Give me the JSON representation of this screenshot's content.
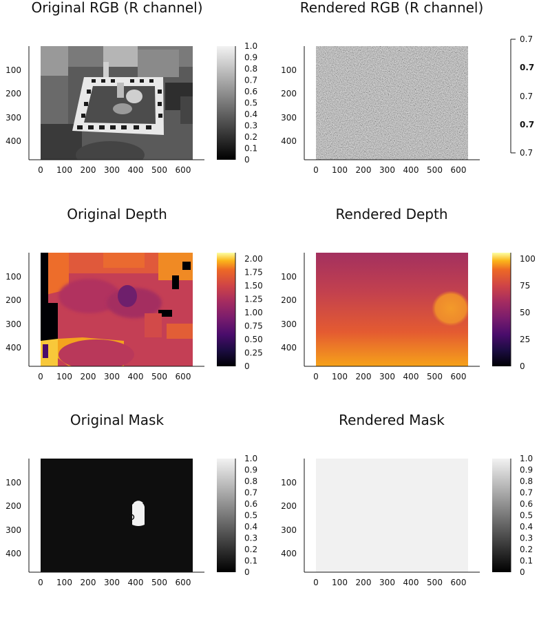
{
  "chart_data": [
    {
      "type": "heatmap",
      "title": "Original RGB (R channel)",
      "colormap": "grays",
      "xticks": [
        0,
        100,
        200,
        300,
        400,
        500,
        600
      ],
      "yticks": [
        100,
        200,
        300,
        400
      ],
      "xlim": [
        0,
        640
      ],
      "ylim": [
        480,
        0
      ],
      "colorbar": {
        "min": 0,
        "max": 1.0,
        "ticks": [
          "0",
          "0.1",
          "0.2",
          "0.3",
          "0.4",
          "0.5",
          "0.6",
          "0.7",
          "0.8",
          "0.9",
          "1.0"
        ]
      },
      "content": "photo"
    },
    {
      "type": "heatmap",
      "title": "Rendered RGB (R channel)",
      "colormap": "grays",
      "xticks": [
        0,
        100,
        200,
        300,
        400,
        500,
        600
      ],
      "yticks": [
        100,
        200,
        300,
        400
      ],
      "xlim": [
        0,
        640
      ],
      "ylim": [
        480,
        0
      ],
      "colorbar": {
        "ticks": [
          "0.7",
          "0.7",
          "0.7",
          "0.7",
          "0.7"
        ],
        "bold": [
          false,
          true,
          false,
          true,
          false
        ]
      },
      "content": "noise"
    },
    {
      "type": "heatmap",
      "title": "Original Depth",
      "colormap": "inferno",
      "xticks": [
        0,
        100,
        200,
        300,
        400,
        500,
        600
      ],
      "yticks": [
        100,
        200,
        300,
        400
      ],
      "xlim": [
        0,
        640
      ],
      "ylim": [
        480,
        0
      ],
      "colorbar": {
        "min": 0,
        "max": 2.1,
        "ticks": [
          "0",
          "0.25",
          "0.50",
          "0.75",
          "1.00",
          "1.25",
          "1.50",
          "1.75",
          "2.00"
        ]
      },
      "content": "depth"
    },
    {
      "type": "heatmap",
      "title": "Rendered Depth",
      "colormap": "inferno",
      "xticks": [
        0,
        100,
        200,
        300,
        400,
        500,
        600
      ],
      "yticks": [
        100,
        200,
        300,
        400
      ],
      "xlim": [
        0,
        640
      ],
      "ylim": [
        480,
        0
      ],
      "colorbar": {
        "min": 0,
        "max": 108,
        "ticks": [
          "0",
          "25",
          "50",
          "75",
          "100"
        ]
      },
      "content": "gradient"
    },
    {
      "type": "heatmap",
      "title": "Original Mask",
      "colormap": "grays",
      "xticks": [
        0,
        100,
        200,
        300,
        400,
        500,
        600
      ],
      "yticks": [
        100,
        200,
        300,
        400
      ],
      "xlim": [
        0,
        640
      ],
      "ylim": [
        480,
        0
      ],
      "colorbar": {
        "min": 0,
        "max": 1.0,
        "ticks": [
          "0",
          "0.1",
          "0.2",
          "0.3",
          "0.4",
          "0.5",
          "0.6",
          "0.7",
          "0.8",
          "0.9",
          "1.0"
        ]
      },
      "content": "mask"
    },
    {
      "type": "heatmap",
      "title": "Rendered Mask",
      "colormap": "grays",
      "xticks": [
        0,
        100,
        200,
        300,
        400,
        500,
        600
      ],
      "yticks": [
        100,
        200,
        300,
        400
      ],
      "xlim": [
        0,
        640
      ],
      "ylim": [
        480,
        0
      ],
      "colorbar": {
        "min": 0,
        "max": 1.0,
        "ticks": [
          "0",
          "0.1",
          "0.2",
          "0.3",
          "0.4",
          "0.5",
          "0.6",
          "0.7",
          "0.8",
          "0.9",
          "1.0"
        ]
      },
      "content": "flat"
    }
  ]
}
